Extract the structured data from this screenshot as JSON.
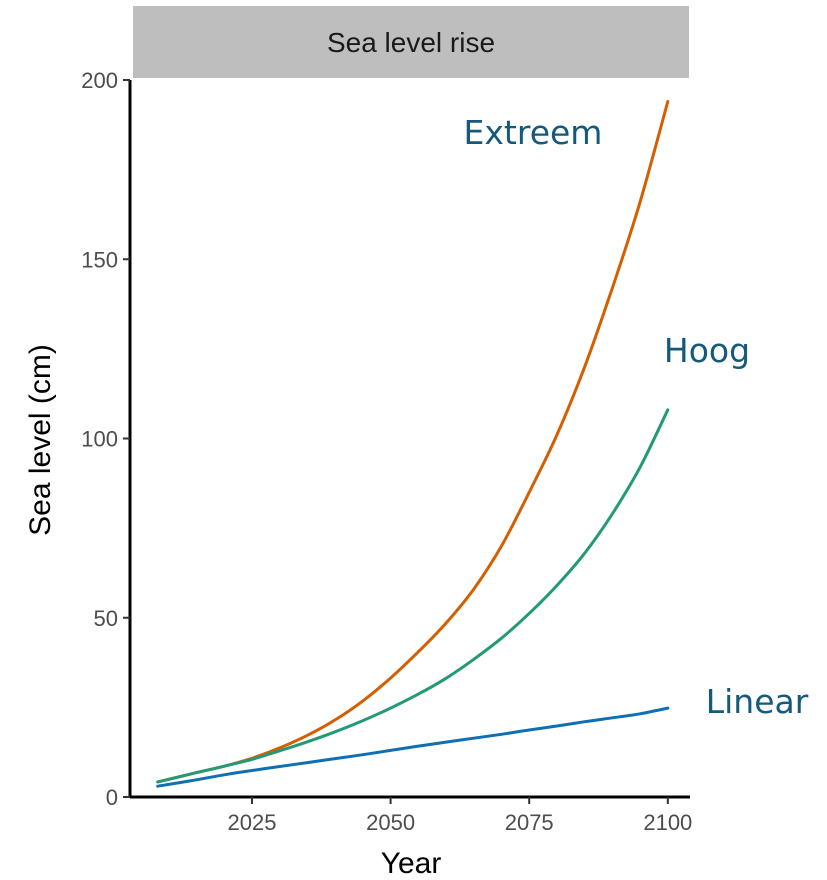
{
  "chart_data": {
    "type": "line",
    "title": "Sea level rise",
    "xlabel": "Year",
    "ylabel": "Sea level (cm)",
    "xlim": [
      2003,
      2104
    ],
    "ylim": [
      0,
      200
    ],
    "xticks": [
      2025,
      2050,
      2075,
      2100
    ],
    "yticks": [
      0,
      50,
      100,
      150,
      200
    ],
    "grid": false,
    "legend": "direct labels",
    "x": [
      2008,
      2015,
      2020,
      2025,
      2030,
      2035,
      2040,
      2045,
      2050,
      2055,
      2060,
      2065,
      2070,
      2075,
      2080,
      2085,
      2090,
      2095,
      2100
    ],
    "series": [
      {
        "name": "Extreem",
        "color": "#d55e00",
        "values": [
          4.2,
          6.8,
          8.6,
          10.8,
          13.7,
          17.2,
          21.5,
          26.8,
          33.2,
          40.5,
          48.5,
          58.0,
          70.0,
          85.0,
          101.0,
          120.0,
          142.0,
          166.0,
          194.0
        ]
      },
      {
        "name": "Hoog",
        "color": "#229a77",
        "values": [
          4.2,
          6.8,
          8.6,
          10.5,
          12.9,
          15.4,
          18.2,
          21.3,
          24.8,
          28.7,
          33.1,
          38.4,
          44.3,
          51.2,
          59.0,
          68.0,
          79.0,
          92.0,
          108.0
        ]
      },
      {
        "name": "Linear",
        "color": "#0f6fb3",
        "values": [
          3.0,
          4.8,
          6.2,
          7.4,
          8.5,
          9.6,
          10.7,
          11.8,
          13.0,
          14.2,
          15.3,
          16.4,
          17.5,
          18.7,
          19.8,
          21.0,
          22.1,
          23.2,
          24.8
        ]
      }
    ],
    "label_color": "#155a7a"
  }
}
